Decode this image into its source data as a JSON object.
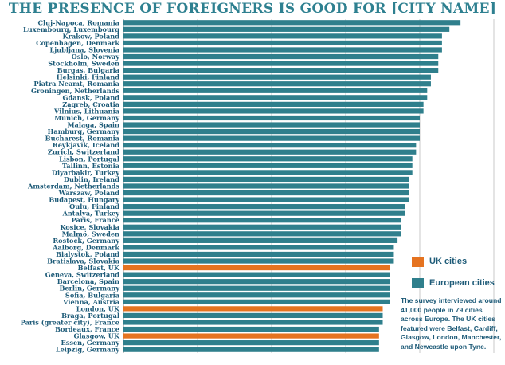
{
  "title": "THE PRESENCE OF FOREIGNERS IS GOOD FOR [CITY NAME]",
  "legend": [
    {
      "label": "UK cities",
      "color": "#e57320"
    },
    {
      "label": "European cities",
      "color": "#2f7f8c"
    }
  ],
  "note": "The survey interviewed around 41,000 people in 79 cities across Europe. The UK cities featured were Belfast, Cardiff, Glasgow, London, Manchester, and Newcastle upon Tyne.",
  "chart_data": {
    "type": "bar",
    "orientation": "horizontal",
    "title": "THE PRESENCE OF FOREIGNERS IS GOOD FOR [CITY NAME]",
    "xlabel": "",
    "ylabel": "",
    "xlim": [
      0,
      100
    ],
    "grid": true,
    "legend_position": "right",
    "series": [
      {
        "name": "UK cities",
        "color": "#e57320"
      },
      {
        "name": "European cities",
        "color": "#2f7f8c"
      }
    ],
    "categories": [
      "Cluj-Napoca, Romania",
      "Luxembourg, Luxembourg",
      "Krakow, Poland",
      "Copenhagen, Denmark",
      "Ljubljana, Slovenia",
      "Oslo, Norway",
      "Stockholm, Sweden",
      "Burgas, Bulgaria",
      "Helsinki, Finland",
      "Piatra Neamt, Romania",
      "Groningen, Netherlands",
      "Gdansk, Poland",
      "Zagreb, Croatia",
      "Vilnius, Lithuania",
      "Munich, Germany",
      "Malaga, Spain",
      "Hamburg, Germany",
      "Bucharest, Romania",
      "Reykjavik, Iceland",
      "Zurich, Switzerland",
      "Lisbon, Portugal",
      "Tallinn, Estonia",
      "Diyarbakir, Turkey",
      "Dublin, Ireland",
      "Amsterdam, Netherlands",
      "Warszaw, Poland",
      "Budapest, Hungary",
      "Oulu, Finland",
      "Antalya, Turkey",
      "Paris, France",
      "Kosice, Slovakia",
      "Malmö, Sweden",
      "Rostock, Germany",
      "Aalborg, Denmark",
      "Bialystok, Poland",
      "Bratislava, Slovakia",
      "Belfast, UK",
      "Geneva, Switzerland",
      "Barcelona, Spain",
      "Berlin, Germany",
      "Sofia, Bulgaria",
      "Vienna, Austria",
      "London, UK",
      "Braga, Portugal",
      "Paris (greater city), France",
      "Bordeaux, France",
      "Glasgow, UK",
      "Essen, Germany",
      "Leipzig, Germany"
    ],
    "values": [
      91,
      88,
      86,
      86,
      86,
      85,
      85,
      85,
      83,
      83,
      82,
      82,
      81,
      81,
      80,
      80,
      80,
      80,
      79,
      79,
      78,
      78,
      78,
      77,
      77,
      77,
      77,
      76,
      76,
      75,
      75,
      75,
      74,
      73,
      73,
      73,
      72,
      72,
      72,
      72,
      72,
      72,
      70,
      70,
      70,
      69,
      69,
      69,
      69
    ],
    "groups": [
      "European cities",
      "European cities",
      "European cities",
      "European cities",
      "European cities",
      "European cities",
      "European cities",
      "European cities",
      "European cities",
      "European cities",
      "European cities",
      "European cities",
      "European cities",
      "European cities",
      "European cities",
      "European cities",
      "European cities",
      "European cities",
      "European cities",
      "European cities",
      "European cities",
      "European cities",
      "European cities",
      "European cities",
      "European cities",
      "European cities",
      "European cities",
      "European cities",
      "European cities",
      "European cities",
      "European cities",
      "European cities",
      "European cities",
      "European cities",
      "European cities",
      "European cities",
      "UK cities",
      "European cities",
      "European cities",
      "European cities",
      "European cities",
      "European cities",
      "UK cities",
      "European cities",
      "European cities",
      "European cities",
      "UK cities",
      "European cities",
      "European cities"
    ]
  }
}
